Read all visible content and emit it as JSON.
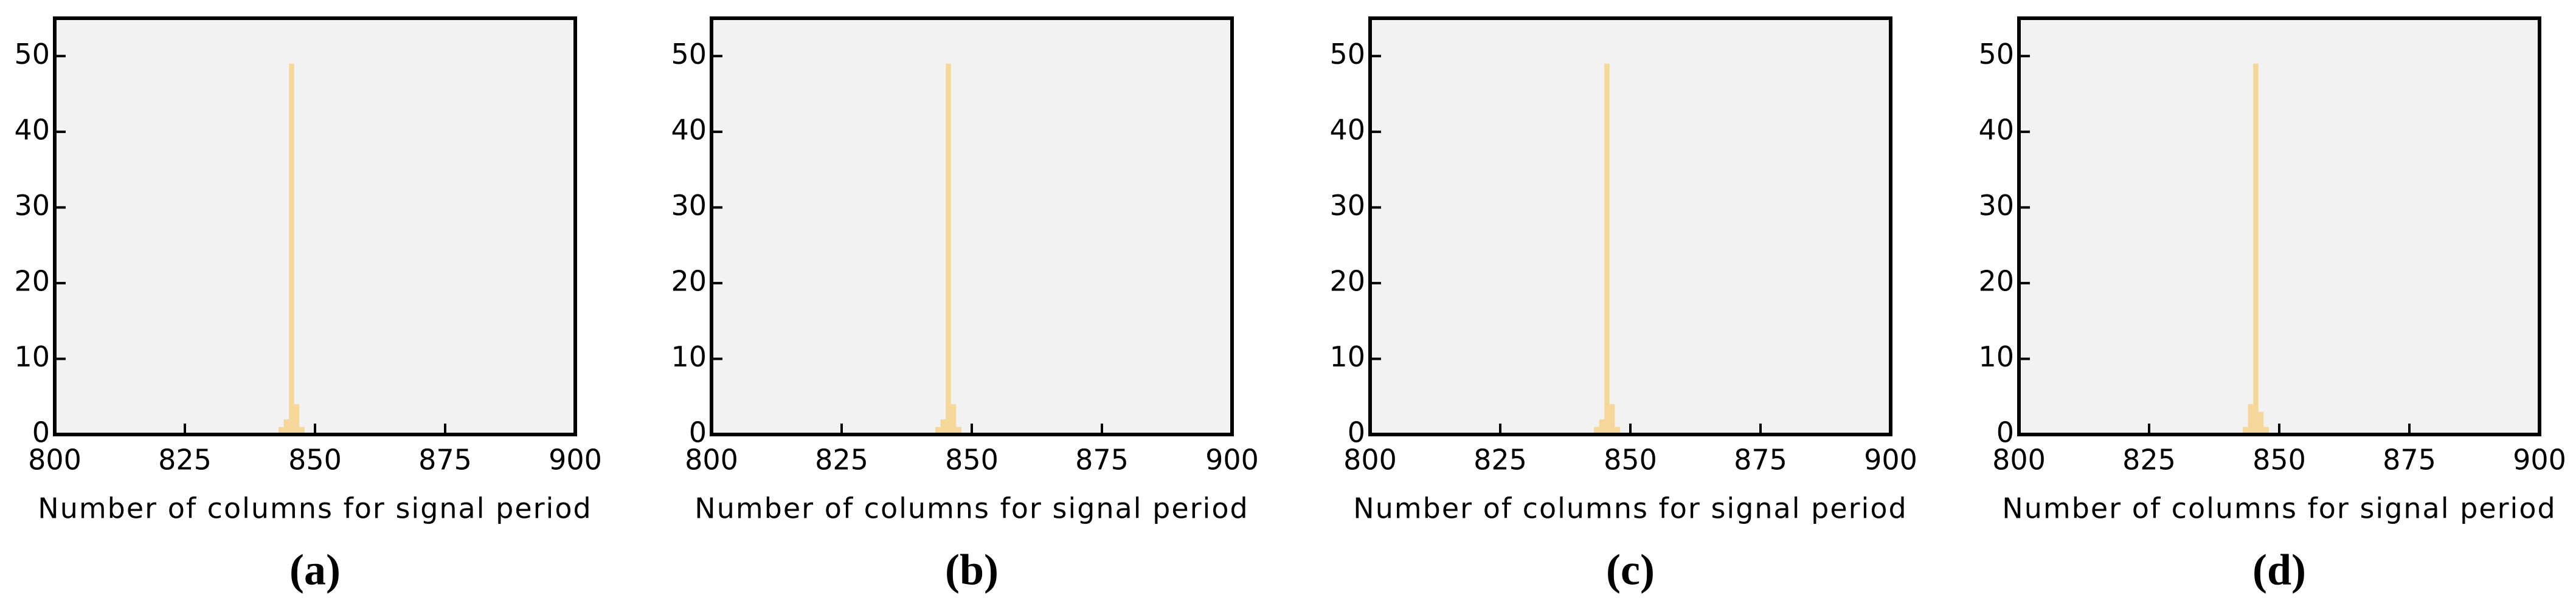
{
  "chart_data": [
    {
      "type": "histogram",
      "caption": "(a)",
      "xlabel": "Number of columns for signal period",
      "bins": [
        843,
        844,
        845,
        846,
        847,
        848
      ],
      "counts": [
        1,
        2,
        49,
        4,
        1
      ],
      "color": "#f5d79a",
      "xlim": [
        800,
        900
      ],
      "ylim": [
        0,
        55
      ],
      "xticks": [
        800,
        825,
        850,
        875,
        900
      ],
      "yticks": [
        0,
        10,
        20,
        30,
        40,
        50
      ]
    },
    {
      "type": "histogram",
      "caption": "(b)",
      "xlabel": "Number of columns for signal period",
      "bins": [
        843,
        844,
        845,
        846,
        847,
        848
      ],
      "counts": [
        1,
        2,
        49,
        4,
        1
      ],
      "color": "#f5d79a",
      "xlim": [
        800,
        900
      ],
      "ylim": [
        0,
        55
      ],
      "xticks": [
        800,
        825,
        850,
        875,
        900
      ],
      "yticks": [
        0,
        10,
        20,
        30,
        40,
        50
      ]
    },
    {
      "type": "histogram",
      "caption": "(c)",
      "xlabel": "Number of columns for signal period",
      "bins": [
        843,
        844,
        845,
        846,
        847,
        848
      ],
      "counts": [
        1,
        2,
        49,
        4,
        1
      ],
      "color": "#f5d79a",
      "xlim": [
        800,
        900
      ],
      "ylim": [
        0,
        55
      ],
      "xticks": [
        800,
        825,
        850,
        875,
        900
      ],
      "yticks": [
        0,
        10,
        20,
        30,
        40,
        50
      ]
    },
    {
      "type": "histogram",
      "caption": "(d)",
      "xlabel": "Number of columns for signal period",
      "bins": [
        843,
        844,
        845,
        846,
        847,
        848
      ],
      "counts": [
        1,
        4,
        49,
        3,
        1
      ],
      "color": "#f5d79a",
      "xlim": [
        800,
        900
      ],
      "ylim": [
        0,
        55
      ],
      "xticks": [
        800,
        825,
        850,
        875,
        900
      ],
      "yticks": [
        0,
        10,
        20,
        30,
        40,
        50
      ]
    }
  ]
}
